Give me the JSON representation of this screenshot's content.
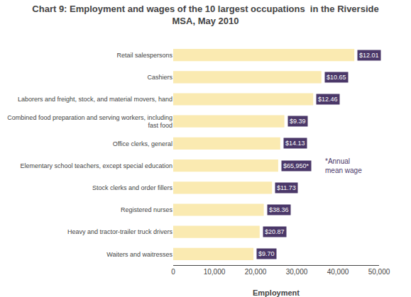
{
  "chart_data": {
    "type": "bar",
    "orientation": "horizontal",
    "title": "Chart 9: Employment and wages of the 10 largest occupations  in the Riverside\nMSA, May 2010",
    "categories": [
      "Retail salespersons",
      "Cashiers",
      "Laborers and freight, stock, and material movers, hand",
      "Combined food preparation and serving workers, including\nfast food",
      "Office clerks, general",
      "Elementary school teachers, except special education",
      "Stock clerks and order fillers",
      "Registered nurses",
      "Heavy and tractor-trailer truck drivers",
      "Waiters and waitresses"
    ],
    "values": [
      44000,
      36000,
      34000,
      27000,
      26000,
      25500,
      24000,
      22000,
      21000,
      19500
    ],
    "wages": [
      "$12.01",
      "$10.65",
      "$12.46",
      "$9.39",
      "$14.13",
      "$65,950*",
      "$11.73",
      "$38.36",
      "$20.87",
      "$9.70"
    ],
    "color": "#FAEAB1",
    "xlabel": "Employment",
    "xlim": [
      0,
      50000
    ],
    "xticks": [
      0,
      {
        "value": 10000,
        "label": "10,000"
      },
      {
        "value": 20000,
        "label": "20,000"
      },
      {
        "value": 30000,
        "label": "30,000"
      },
      {
        "value": 40000,
        "label": "40,000"
      },
      {
        "value": 50000,
        "label": "50,000"
      }
    ],
    "grid": false,
    "annotations": [
      {
        "text": "*Annual\nmean wage",
        "x": 36500,
        "category": "Elementary school teachers, except special education",
        "color": "#4B3869"
      }
    ]
  }
}
